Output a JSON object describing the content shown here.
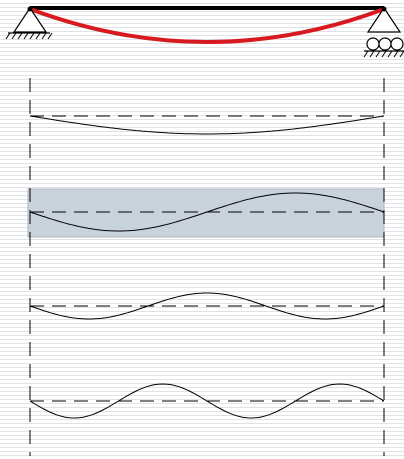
{
  "colors": {
    "background": "#ffffff",
    "stripe": "#dfe2e6",
    "beam": "#000000",
    "deflection": "#d71920",
    "curve": "#000000",
    "highlight": "#c7d1db",
    "highlight_border": "#aab3bd"
  },
  "beam": {
    "supports": [
      "pin-support",
      "roller-support"
    ]
  },
  "modes": [
    {
      "mode": 1,
      "half_waves": 1,
      "highlighted": false
    },
    {
      "mode": 2,
      "half_waves": 2,
      "highlighted": true
    },
    {
      "mode": 3,
      "half_waves": 3,
      "highlighted": false
    },
    {
      "mode": 4,
      "half_waves": 4,
      "highlighted": false
    }
  ]
}
